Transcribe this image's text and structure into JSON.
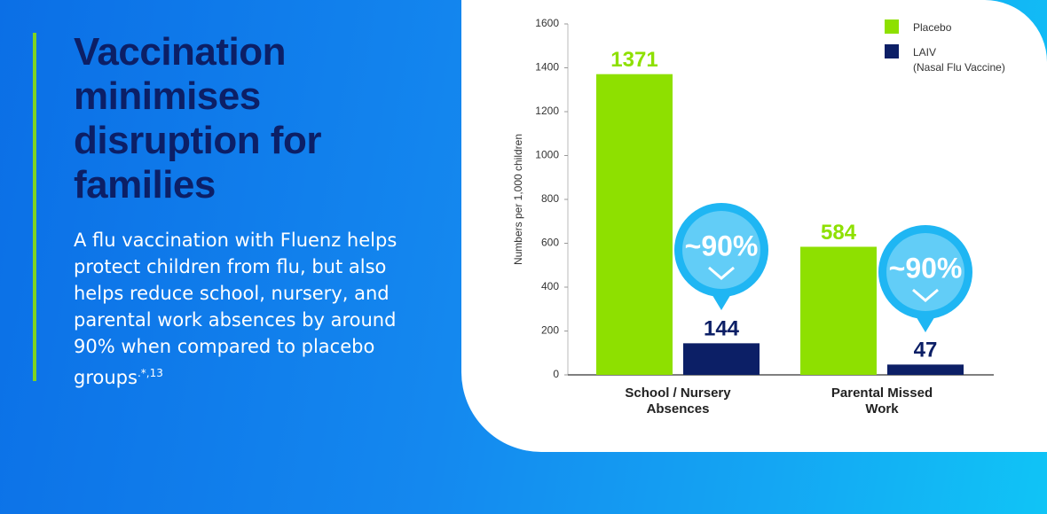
{
  "panel": {
    "heading": "Vaccination\nminimises\ndisruption for\nfamilies",
    "body": "A flu vaccination with Fluenz helps protect children from flu, but also helps reduce school, nursery, and parental work absences by around 90% when compared to placebo groups",
    "body_reference": ".*,13"
  },
  "chart_data": {
    "type": "bar",
    "categories": [
      "School / Nursery\nAbsences",
      "Parental Missed\nWork"
    ],
    "series": [
      {
        "name": "Placebo",
        "color": "#8ee000",
        "values": [
          1371,
          584
        ]
      },
      {
        "name": "LAIV\n(Nasal Flu Vaccine)",
        "color": "#0c1f66",
        "values": [
          144,
          47
        ]
      }
    ],
    "y_label": "Numbers per 1,000 children",
    "ylim": [
      0,
      1600
    ],
    "yticks": [
      0,
      200,
      400,
      600,
      800,
      1000,
      1200,
      1400,
      1600
    ],
    "grid": false,
    "legend": "top-right",
    "annotations": [
      "~90%",
      "~90%"
    ]
  }
}
